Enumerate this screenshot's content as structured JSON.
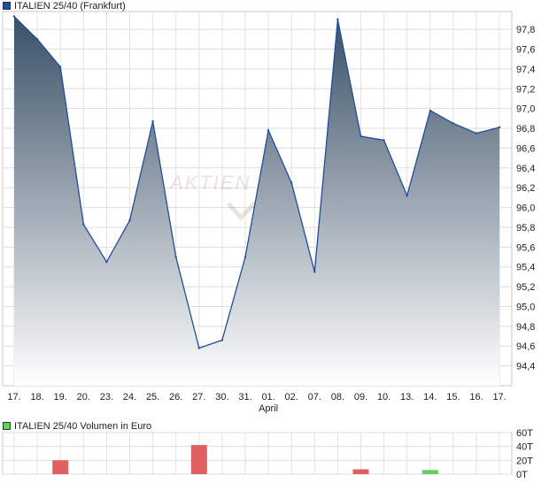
{
  "chart_data": [
    {
      "type": "area",
      "title": "ITALIEN 25/40 (Frankfurt)",
      "x": [
        "17.",
        "18.",
        "19.",
        "20.",
        "23.",
        "24.",
        "25.",
        "26.",
        "27.",
        "30.",
        "31.",
        "01.",
        "02.",
        "07.",
        "08.",
        "09.",
        "10.",
        "13.",
        "14.",
        "15.",
        "16.",
        "17."
      ],
      "x_month_label": "April",
      "x_month_label_at": "01.",
      "values": [
        97.93,
        97.7,
        97.42,
        95.83,
        95.45,
        95.87,
        96.87,
        95.5,
        94.58,
        94.66,
        95.5,
        96.78,
        96.25,
        95.35,
        97.9,
        96.72,
        96.68,
        96.12,
        96.98,
        96.85,
        96.75,
        96.81
      ],
      "yticks": [
        "94,4",
        "94,6",
        "94,8",
        "95,0",
        "95,2",
        "95,4",
        "95,6",
        "95,8",
        "96,0",
        "96,2",
        "96,4",
        "96,6",
        "96,8",
        "97,0",
        "97,2",
        "97,4",
        "97,6",
        "97,8"
      ],
      "ylim": [
        94.2,
        97.98
      ],
      "grid": true,
      "legend": "top-left",
      "colors": {
        "line": "#1f4e9c",
        "fill_top": "#3a5066",
        "fill_bottom": "#ffffff",
        "legend_swatch": "#1f4e9c"
      }
    },
    {
      "type": "bar",
      "title": "ITALIEN 25/40 Volumen in Euro",
      "x": [
        "17.",
        "18.",
        "19.",
        "20.",
        "23.",
        "24.",
        "25.",
        "26.",
        "27.",
        "30.",
        "31.",
        "01.",
        "02.",
        "07.",
        "08.",
        "09.",
        "10.",
        "13.",
        "14.",
        "15.",
        "16.",
        "17."
      ],
      "values": [
        0,
        0,
        20,
        0,
        0,
        0,
        0,
        0,
        42,
        0,
        0,
        0,
        0,
        0,
        0,
        7,
        0,
        0,
        6,
        0,
        0,
        0
      ],
      "bar_colors": [
        "",
        "",
        "#e06060",
        "",
        "",
        "",
        "",
        "",
        "#e06060",
        "",
        "",
        "",
        "",
        "",
        "",
        "#e06060",
        "",
        "",
        "#60d060",
        "",
        "",
        ""
      ],
      "yticks": [
        "0T",
        "20T",
        "40T",
        "60T"
      ],
      "ylim": [
        0,
        60
      ],
      "grid": true,
      "legend": "top-left",
      "colors": {
        "legend_swatch": "#60d060"
      }
    }
  ]
}
